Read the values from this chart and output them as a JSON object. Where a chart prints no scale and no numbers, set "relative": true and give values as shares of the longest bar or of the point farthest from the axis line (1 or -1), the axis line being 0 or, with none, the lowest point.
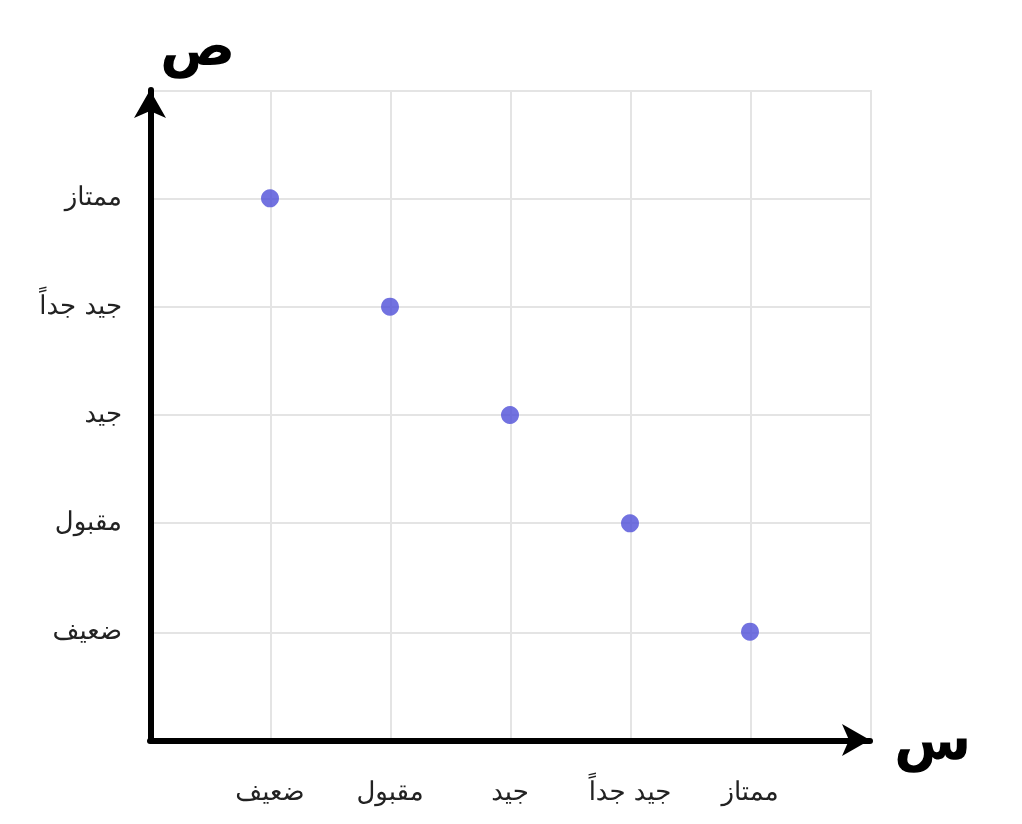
{
  "chart_data": {
    "type": "scatter",
    "xlabel": "س",
    "ylabel": "ص",
    "relative": true,
    "categories": [
      "ضعيف",
      "مقبول",
      "جيد",
      "جيد جداً",
      "ممتاز"
    ],
    "y_categories": [
      "ممتاز",
      "جيد جداً",
      "جيد",
      "مقبول",
      "ضعيف"
    ],
    "values": [
      1,
      0.8,
      0.6,
      0.4,
      0.2
    ],
    "color": "#4f4fd8",
    "marker": "circle",
    "grid": true
  }
}
